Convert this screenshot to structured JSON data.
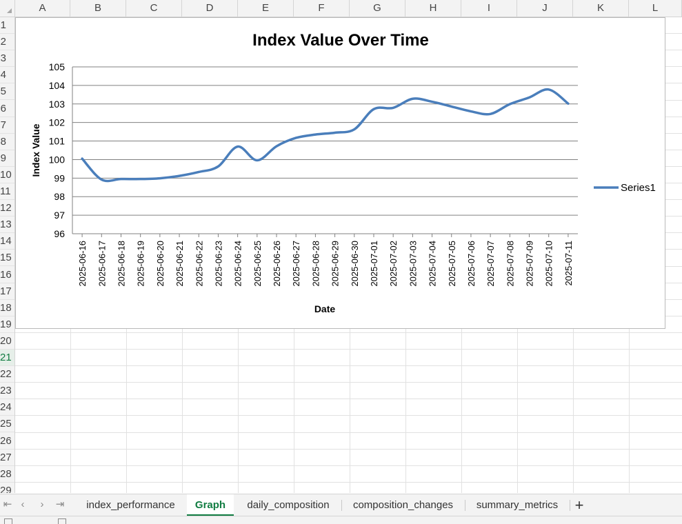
{
  "columns": [
    "A",
    "B",
    "C",
    "D",
    "E",
    "F",
    "G",
    "H",
    "I",
    "J",
    "K",
    "L"
  ],
  "rows": [
    "1",
    "2",
    "3",
    "4",
    "5",
    "6",
    "7",
    "8",
    "9",
    "10",
    "11",
    "12",
    "13",
    "14",
    "15",
    "16",
    "17",
    "18",
    "19",
    "20",
    "21",
    "22",
    "23",
    "24",
    "25",
    "26",
    "27",
    "28",
    "29"
  ],
  "active_row": "21",
  "chart_data": {
    "type": "line",
    "title": "Index Value Over Time",
    "xlabel": "Date",
    "ylabel": "Index Value",
    "ylim": [
      96,
      105
    ],
    "yticks": [
      "96",
      "97",
      "98",
      "99",
      "100",
      "101",
      "102",
      "103",
      "104",
      "105"
    ],
    "grid": true,
    "smooth": true,
    "legend_position": "right",
    "x": [
      "2025-06-16",
      "2025-06-17",
      "2025-06-18",
      "2025-06-19",
      "2025-06-20",
      "2025-06-21",
      "2025-06-22",
      "2025-06-23",
      "2025-06-24",
      "2025-06-25",
      "2025-06-26",
      "2025-06-27",
      "2025-06-28",
      "2025-06-29",
      "2025-06-30",
      "2025-07-01",
      "2025-07-02",
      "2025-07-03",
      "2025-07-04",
      "2025-07-05",
      "2025-07-06",
      "2025-07-07",
      "2025-07-08",
      "2025-07-09",
      "2025-07-10",
      "2025-07-11"
    ],
    "series": [
      {
        "name": "Series1",
        "color": "#4a7ebb",
        "values": [
          100.05,
          98.92,
          98.95,
          98.95,
          98.99,
          99.12,
          99.33,
          99.63,
          100.7,
          99.96,
          100.72,
          101.17,
          101.35,
          101.45,
          101.63,
          102.72,
          102.79,
          103.28,
          103.12,
          102.86,
          102.6,
          102.46,
          102.99,
          103.35,
          103.78,
          103.02
        ]
      }
    ]
  },
  "sheet_nav": {
    "first": "⇤",
    "prev": "‹",
    "next": "›",
    "last": "⇥"
  },
  "tabs": [
    "index_performance",
    "Graph",
    "daily_composition",
    "composition_changes",
    "summary_metrics"
  ],
  "active_tab": "Graph",
  "add_sheet_label": "+",
  "colors": {
    "accent": "#107c41",
    "series": "#4a7ebb",
    "gridline": "#808080"
  }
}
